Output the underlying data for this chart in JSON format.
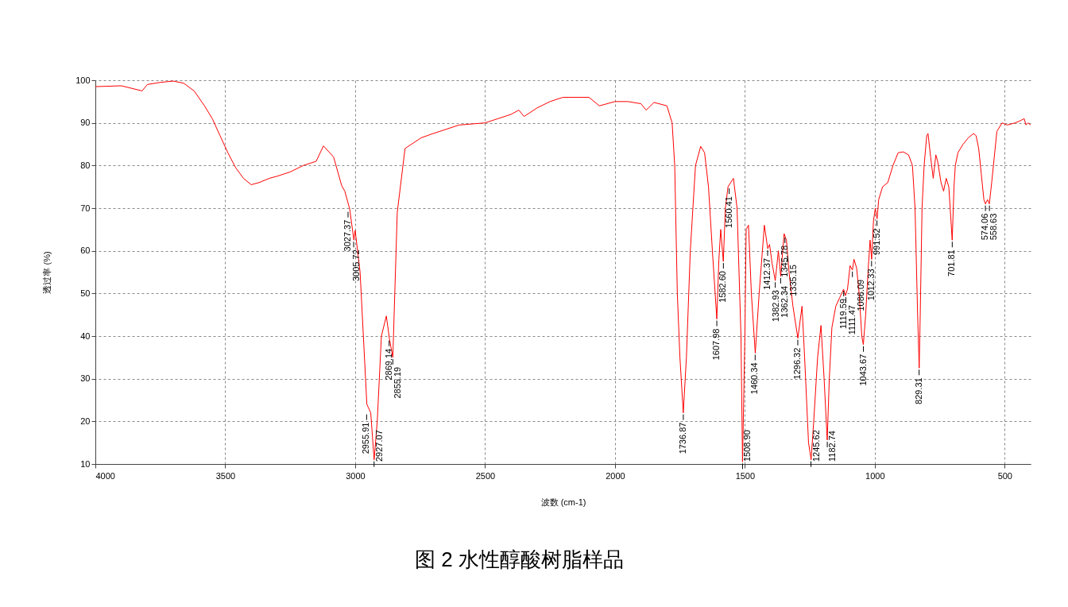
{
  "chart_data": {
    "type": "line",
    "title": "图 2 水性醇酸树脂样品",
    "xlabel": "波数 (cm-1)",
    "ylabel": "透过率 (%)",
    "color": "#ff0000",
    "x": [
      4000,
      3900,
      3820,
      3800,
      3750,
      3700,
      3660,
      3620,
      3580,
      3550,
      3520,
      3490,
      3460,
      3430,
      3400,
      3370,
      3330,
      3300,
      3250,
      3200,
      3150,
      3122,
      3083,
      3052,
      3040,
      3021,
      3005,
      3000,
      2981,
      2960,
      2955,
      2940,
      2927,
      2915,
      2899,
      2880,
      2868,
      2855,
      2838,
      2808,
      2746,
      2700,
      2600,
      2500,
      2450,
      2400,
      2370,
      2350,
      2300,
      2250,
      2200,
      2100,
      2060,
      2000,
      1950,
      1900,
      1880,
      1850,
      1800,
      1780,
      1770,
      1760,
      1750,
      1737,
      1725,
      1710,
      1690,
      1670,
      1655,
      1640,
      1625,
      1608,
      1600,
      1593,
      1583,
      1575,
      1565,
      1544,
      1530,
      1515,
      1509,
      1500,
      1495,
      1486,
      1475,
      1460,
      1445,
      1430,
      1425,
      1412,
      1405,
      1395,
      1383,
      1371,
      1362,
      1349,
      1340,
      1330,
      1315,
      1296,
      1280,
      1270,
      1255,
      1245,
      1235,
      1220,
      1207,
      1195,
      1183,
      1175,
      1165,
      1150,
      1135,
      1120,
      1113,
      1105,
      1095,
      1086,
      1080,
      1070,
      1060,
      1050,
      1044,
      1035,
      1025,
      1018,
      1012,
      1005,
      998,
      991,
      985,
      970,
      950,
      930,
      910,
      890,
      870,
      855,
      845,
      835,
      829,
      825,
      818,
      810,
      800,
      795,
      785,
      775,
      765,
      758,
      745,
      735,
      725,
      715,
      702,
      695,
      690,
      680,
      660,
      640,
      620,
      610,
      600,
      590,
      580,
      574,
      566,
      559,
      550,
      530,
      510,
      490,
      460,
      440,
      425,
      418,
      410,
      400
    ],
    "values": [
      98.5,
      98.7,
      97.5,
      99,
      99.5,
      99.8,
      99.3,
      97.5,
      94,
      91,
      87,
      83,
      79.5,
      77,
      75.5,
      76,
      77,
      77.5,
      78.5,
      80,
      81,
      84.6,
      82,
      75.3,
      74,
      69.8,
      62.5,
      64.8,
      55,
      30,
      24,
      22,
      11,
      20,
      40,
      44.7,
      39.3,
      35,
      69,
      84,
      86.5,
      87.5,
      89.5,
      90,
      91,
      92,
      93,
      91.5,
      93.5,
      95,
      96,
      96,
      94,
      95,
      95,
      94.5,
      93,
      94.8,
      94,
      90,
      80,
      50,
      35,
      22,
      35,
      60,
      80,
      84.5,
      83,
      75,
      60,
      44,
      58,
      65,
      57.5,
      70,
      75,
      77,
      70,
      40,
      10.5,
      40,
      65,
      66,
      50,
      36,
      50,
      62,
      66,
      60.5,
      61.5,
      57,
      53,
      60,
      54,
      64,
      62.5,
      55,
      47,
      39.5,
      47,
      35,
      15,
      11,
      20,
      35,
      42.5,
      30,
      15.6,
      30,
      42,
      47,
      49,
      51,
      49.5,
      51,
      56.5,
      55.5,
      58,
      56,
      50,
      40,
      38,
      45,
      56,
      62.5,
      58,
      67,
      70,
      67.5,
      72,
      75,
      76,
      80,
      83,
      83.2,
      82.5,
      80,
      70,
      45,
      32.5,
      45,
      70,
      80,
      87,
      87.5,
      82,
      77,
      82.5,
      81,
      76,
      74,
      77,
      75,
      62.5,
      75,
      80,
      83,
      85,
      86.5,
      87.5,
      87,
      84,
      78,
      72,
      71,
      72,
      71,
      76,
      88,
      90,
      89.5,
      90,
      90.5,
      91,
      89.5,
      90,
      89.5
    ],
    "xlim": [
      4000,
      400
    ],
    "xticks": [
      4000,
      3500,
      3000,
      2500,
      2000,
      1500,
      1000,
      500
    ],
    "ylim": [
      10,
      100
    ],
    "yticks": [
      10,
      20,
      30,
      40,
      50,
      60,
      70,
      80,
      90,
      100
    ],
    "grid": true,
    "annotations": [
      {
        "text": "3027.37",
        "x": 3027.37,
        "y": 69.5
      },
      {
        "text": "3005.72",
        "x": 3005.72,
        "y": 62.5
      },
      {
        "text": "2955.91",
        "x": 2955.91,
        "y": 22
      },
      {
        "text": "2927.07",
        "x": 2927.07,
        "y": 11
      },
      {
        "text": "2869.14",
        "x": 2869.14,
        "y": 39.3
      },
      {
        "text": "2855.19",
        "x": 2855.19,
        "y": 35
      },
      {
        "text": "1736.87",
        "x": 1736.87,
        "y": 22
      },
      {
        "text": "1607.98",
        "x": 1607.98,
        "y": 44
      },
      {
        "text": "1582.60",
        "x": 1582.6,
        "y": 57.5
      },
      {
        "text": "1560.41",
        "x": 1560.41,
        "y": 75
      },
      {
        "text": "1508.90",
        "x": 1508.9,
        "y": 10.5
      },
      {
        "text": "1460.34",
        "x": 1460.34,
        "y": 36
      },
      {
        "text": "1412.37",
        "x": 1412.37,
        "y": 60.5
      },
      {
        "text": "1382.93",
        "x": 1382.93,
        "y": 53
      },
      {
        "text": "1362.34",
        "x": 1362.34,
        "y": 54
      },
      {
        "text": "1345.78",
        "x": 1345.78,
        "y": 63.5
      },
      {
        "text": "1335.15",
        "x": 1335.15,
        "y": 59
      },
      {
        "text": "1296.32",
        "x": 1296.32,
        "y": 39.5
      },
      {
        "text": "1245.62",
        "x": 1245.62,
        "y": 11
      },
      {
        "text": "1182.74",
        "x": 1182.74,
        "y": 15.6
      },
      {
        "text": "1119.59",
        "x": 1119.59,
        "y": 51
      },
      {
        "text": "1111.47",
        "x": 1111.47,
        "y": 49.5
      },
      {
        "text": "1086.09",
        "x": 1086.09,
        "y": 55.5
      },
      {
        "text": "1043.67",
        "x": 1043.67,
        "y": 38
      },
      {
        "text": "1012.33",
        "x": 1012.33,
        "y": 58
      },
      {
        "text": "991.52",
        "x": 991.52,
        "y": 67.5
      },
      {
        "text": "829.31",
        "x": 829.31,
        "y": 32.5
      },
      {
        "text": "701.81",
        "x": 701.81,
        "y": 62.5
      },
      {
        "text": "574.06",
        "x": 574.06,
        "y": 71
      },
      {
        "text": "558.63",
        "x": 558.63,
        "y": 71
      }
    ]
  }
}
